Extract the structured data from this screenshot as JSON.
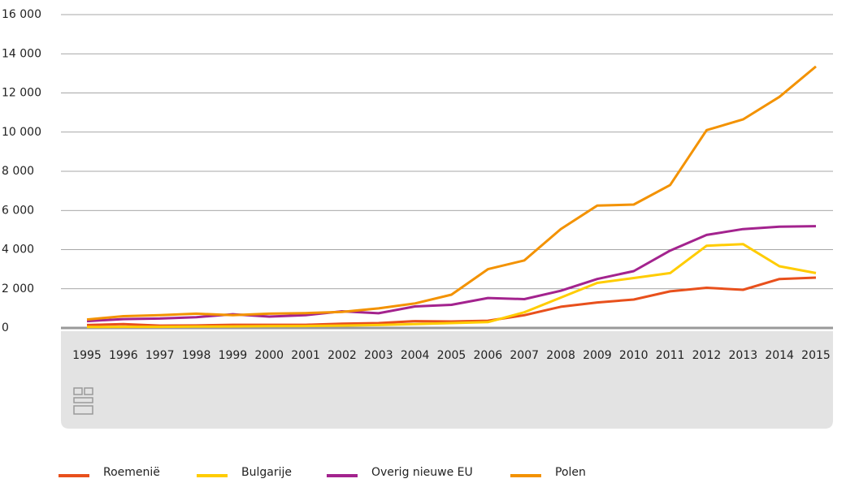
{
  "chart_data": {
    "type": "line",
    "categories": [
      "1995",
      "1996",
      "1997",
      "1998",
      "1999",
      "2000",
      "2001",
      "2002",
      "2003",
      "2004",
      "2005",
      "2006",
      "2007",
      "2008",
      "2009",
      "2010",
      "2011",
      "2012",
      "2013",
      "2014",
      "2015"
    ],
    "series": [
      {
        "name": "Roemenië",
        "color": "#e8501c",
        "values": [
          150,
          200,
          120,
          130,
          160,
          160,
          160,
          220,
          250,
          350,
          330,
          370,
          650,
          1080,
          1300,
          1450,
          1870,
          2050,
          1950,
          2500,
          2570
        ]
      },
      {
        "name": "Bulgarije",
        "color": "#ffcc00",
        "values": [
          50,
          60,
          60,
          70,
          80,
          90,
          100,
          120,
          150,
          200,
          250,
          300,
          800,
          1550,
          2300,
          2550,
          2800,
          4200,
          4280,
          3150,
          2800
        ]
      },
      {
        "name": "Overig nieuwe EU",
        "color": "#a3238e",
        "values": [
          350,
          450,
          480,
          550,
          700,
          580,
          650,
          850,
          750,
          1100,
          1180,
          1530,
          1470,
          1900,
          2500,
          2900,
          3950,
          4750,
          5050,
          5170,
          5200
        ]
      },
      {
        "name": "Polen",
        "color": "#f39200",
        "values": [
          430,
          600,
          650,
          730,
          650,
          730,
          760,
          820,
          1000,
          1250,
          1700,
          3000,
          3450,
          5050,
          6250,
          6300,
          7300,
          10100,
          10650,
          11800,
          13350
        ]
      }
    ],
    "ylim": [
      0,
      16000
    ],
    "yticks": [
      0,
      {
        "value": 2000,
        "label": "2 000"
      },
      {
        "value": 4000,
        "label": "4 000"
      },
      {
        "value": 6000,
        "label": "6 000"
      },
      {
        "value": 8000,
        "label": "8 000"
      },
      {
        "value": 10000,
        "label": "10 000"
      },
      {
        "value": 12000,
        "label": "12 000"
      },
      {
        "value": 14000,
        "label": "14 000"
      },
      {
        "value": 16000,
        "label": "16 000"
      }
    ],
    "grid": true
  }
}
